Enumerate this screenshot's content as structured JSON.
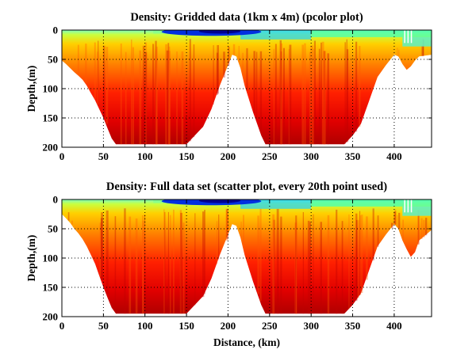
{
  "chart_data": [
    {
      "type": "heatmap",
      "title": "Density: Gridded data (1km x 4m) (pcolor plot)",
      "xlabel": "",
      "ylabel": "Depth,(m)",
      "xlim": [
        0,
        445
      ],
      "ylim": [
        200,
        0
      ],
      "xticks": [
        0,
        50,
        100,
        150,
        200,
        250,
        300,
        350,
        400
      ],
      "yticks": [
        0,
        50,
        100,
        150,
        200
      ],
      "grid": true,
      "colormap": "jet",
      "colormap_stops": [
        "#00008f",
        "#0000ff",
        "#00ffff",
        "#ffff00",
        "#ff0000",
        "#800000"
      ],
      "bottom_depth": {
        "distance": [
          0,
          5,
          10,
          15,
          20,
          25,
          30,
          35,
          40,
          45,
          50,
          55,
          60,
          65,
          70,
          150,
          170,
          180,
          190,
          200,
          205,
          210,
          215,
          220,
          230,
          240,
          245,
          340,
          350,
          360,
          365,
          370,
          375,
          380,
          390,
          400,
          405,
          410,
          415,
          420,
          425,
          430,
          445
        ],
        "depth": [
          52,
          58,
          65,
          72,
          78,
          85,
          95,
          108,
          120,
          135,
          150,
          168,
          185,
          195,
          195,
          195,
          165,
          135,
          95,
          60,
          42,
          45,
          65,
          95,
          140,
          180,
          195,
          195,
          180,
          160,
          140,
          120,
          100,
          80,
          60,
          42,
          45,
          58,
          68,
          62,
          52,
          45,
          42
        ]
      }
    },
    {
      "type": "scatter",
      "title": "Density: Full data set (scatter plot, every 20th point used)",
      "xlabel": "Distance, (km)",
      "ylabel": "Depth,(m)",
      "xlim": [
        0,
        445
      ],
      "ylim": [
        200,
        0
      ],
      "xticks": [
        0,
        50,
        100,
        150,
        200,
        250,
        300,
        350,
        400
      ],
      "yticks": [
        0,
        50,
        100,
        150,
        200
      ],
      "grid": true,
      "colormap": "jet",
      "colormap_stops": [
        "#00008f",
        "#0000ff",
        "#00ffff",
        "#ffff00",
        "#ff0000",
        "#800000"
      ],
      "bottom_depth": {
        "distance": [
          0,
          5,
          10,
          15,
          20,
          25,
          30,
          35,
          40,
          45,
          50,
          55,
          60,
          65,
          70,
          150,
          170,
          180,
          190,
          200,
          205,
          210,
          215,
          220,
          230,
          240,
          245,
          340,
          350,
          360,
          365,
          370,
          375,
          380,
          390,
          400,
          405,
          410,
          415,
          420,
          425,
          430,
          445
        ],
        "depth": [
          25,
          32,
          40,
          50,
          58,
          68,
          80,
          95,
          110,
          130,
          150,
          168,
          185,
          195,
          195,
          195,
          165,
          135,
          95,
          60,
          42,
          45,
          65,
          95,
          140,
          180,
          195,
          195,
          180,
          160,
          140,
          120,
          100,
          80,
          60,
          42,
          50,
          70,
          85,
          98,
          90,
          70,
          52
        ]
      }
    }
  ]
}
